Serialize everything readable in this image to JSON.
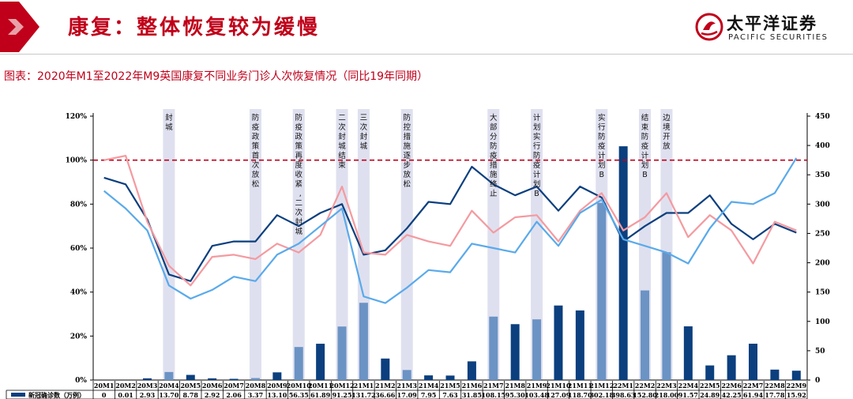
{
  "header": {
    "title": "康复：整体恢复较为缓慢",
    "brand_cn": "太平洋证券",
    "brand_en": "PACIFIC SECURITIES",
    "accent_color": "#c0001a"
  },
  "caption": "图表：2020年M1至2022年M9英国康复不同业务门诊人次恢复情况（同比19年同期）",
  "chart_data": {
    "type": "line",
    "categories": [
      "20M1",
      "20M2",
      "20M3",
      "20M4",
      "20M5",
      "20M6",
      "20M7",
      "20M8",
      "20M9",
      "20M10",
      "20M11",
      "20M12",
      "21M1",
      "21M2",
      "21M3",
      "21M4",
      "21M5",
      "21M6",
      "21M7",
      "21M8",
      "21M9",
      "21M10",
      "21M11",
      "21M12",
      "22M1",
      "22M2",
      "22M3",
      "22M4",
      "22M5",
      "22M6",
      "22M7",
      "22M8",
      "22M9"
    ],
    "left_axis": {
      "ticks": [
        "0%",
        "20%",
        "40%",
        "60%",
        "80%",
        "100%",
        "120%"
      ],
      "range": [
        0,
        1.2
      ]
    },
    "right_axis": {
      "ticks": [
        "0",
        "50",
        "100",
        "150",
        "200",
        "250",
        "300",
        "350",
        "400",
        "450"
      ],
      "range": [
        0,
        450
      ]
    },
    "reference_line": {
      "value": 1.0,
      "color": "#c0001a",
      "style": "dashed"
    },
    "series": [
      {
        "axis": "left",
        "color": "#0b3f7e",
        "values": [
          0.92,
          0.89,
          0.73,
          0.48,
          0.45,
          0.61,
          0.63,
          0.63,
          0.75,
          0.7,
          0.76,
          0.8,
          0.57,
          0.59,
          0.69,
          0.81,
          0.8,
          0.97,
          0.89,
          0.84,
          0.88,
          0.77,
          0.88,
          0.83,
          0.63,
          0.7,
          0.76,
          0.76,
          0.84,
          0.71,
          0.64,
          0.71,
          0.67
        ]
      },
      {
        "axis": "left",
        "color": "#f49aa0",
        "values": [
          1.0,
          1.02,
          0.72,
          0.52,
          0.43,
          0.56,
          0.57,
          0.55,
          0.62,
          0.58,
          0.66,
          0.88,
          0.58,
          0.57,
          0.66,
          0.63,
          0.61,
          0.77,
          0.67,
          0.74,
          0.75,
          0.63,
          0.77,
          0.85,
          0.68,
          0.74,
          0.85,
          0.65,
          0.75,
          0.68,
          0.53,
          0.72,
          0.68
        ]
      },
      {
        "axis": "left",
        "color": "#5aaaea",
        "values": [
          0.86,
          0.78,
          0.68,
          0.43,
          0.37,
          0.41,
          0.47,
          0.45,
          0.57,
          0.62,
          0.7,
          0.78,
          0.38,
          0.35,
          0.42,
          0.5,
          0.49,
          0.62,
          0.6,
          0.58,
          0.72,
          0.61,
          0.76,
          0.82,
          0.64,
          0.61,
          0.58,
          0.53,
          0.69,
          0.81,
          0.8,
          0.85,
          1.01
        ]
      }
    ],
    "bars": {
      "axis": "right",
      "name": "新冠确诊数（万例）",
      "values": [
        0,
        0.01,
        2.93,
        13.7,
        8.78,
        2.92,
        2.06,
        3.37,
        13.1,
        56.35,
        61.89,
        91.25,
        131.72,
        36.66,
        17.09,
        7.95,
        7.63,
        31.85,
        108.15,
        95.3,
        103.48,
        127.09,
        118.7,
        302.18,
        398.63,
        152.8,
        218.0,
        91.57,
        24.89,
        42.25,
        61.94,
        17.78,
        15.92
      ],
      "labels": [
        "0",
        "0.01",
        "2.93",
        "13.70",
        "8.78",
        "2.92",
        "2.06",
        "3.37",
        "13.10",
        "56.35",
        "61.89",
        "91.25",
        "131.72",
        "36.66",
        "17.09",
        "7.95",
        "7.63",
        "31.85",
        "108.15",
        "95.30",
        "103.48",
        "127.09",
        "118.70",
        "302.18",
        "398.63",
        "152.80",
        "218.00",
        "91.57",
        "24.89",
        "42.25",
        "61.94",
        "17.78",
        "15.92"
      ],
      "dark_color": "#0b3f7e",
      "light_color": "#6b93c4"
    },
    "annotations": [
      {
        "index": 3,
        "text": "封城"
      },
      {
        "index": 7,
        "text": "防疫政策首次放松"
      },
      {
        "index": 9,
        "text": "防疫政策再度收紧，二次封城"
      },
      {
        "index": 11,
        "text": "二次封城结束"
      },
      {
        "index": 12,
        "text": "三次封城"
      },
      {
        "index": 14,
        "text": "防控措施逐步放松"
      },
      {
        "index": 18,
        "text": "大部分防疫措施终止"
      },
      {
        "index": 20,
        "text": "计划实行防疫计划B"
      },
      {
        "index": 23,
        "text": "实行防疫计划B"
      },
      {
        "index": 25,
        "text": "结束防疫计划B"
      },
      {
        "index": 26,
        "text": "边境开放"
      }
    ]
  }
}
